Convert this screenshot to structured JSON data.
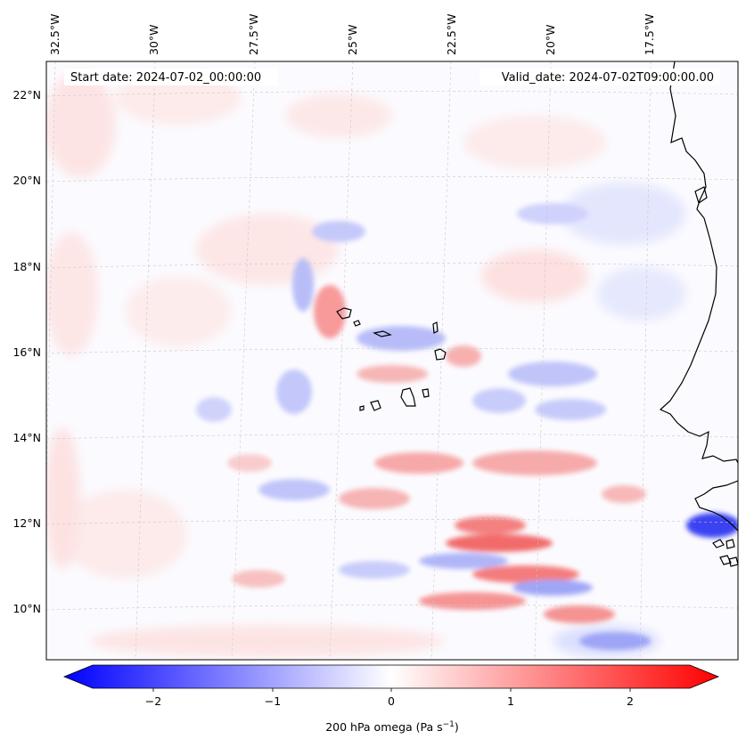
{
  "header": {
    "start_date": "Start date: 2024-07-02_00:00:00",
    "valid_date": "Valid_date: 2024-07-02T09:00:00.00"
  },
  "axes": {
    "lon_labels": [
      "32.5°W",
      "30°W",
      "27.5°W",
      "25°W",
      "22.5°W",
      "20°W",
      "17.5°W"
    ],
    "lat_labels": [
      "22°N",
      "20°N",
      "18°N",
      "16°N",
      "14°N",
      "12°N",
      "10°N"
    ]
  },
  "colorbar": {
    "label_prefix": "200 hPa omega (Pa s",
    "label_exp": "−1",
    "label_suffix": ")",
    "ticks": [
      "−2",
      "−1",
      "0",
      "1",
      "2"
    ],
    "range": [
      -2.7,
      2.7
    ],
    "neg_color": "#0000ff",
    "pos_color": "#ff0000"
  },
  "map": {
    "coastline_color": "#000000",
    "grid_color": "#c8c8c8"
  }
}
